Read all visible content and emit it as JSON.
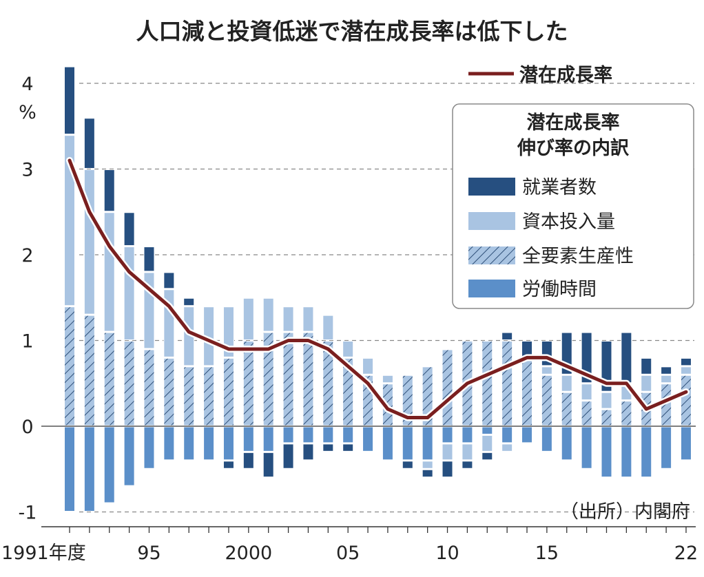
{
  "chart_data": {
    "type": "bar",
    "title": "人口減と投資低迷で潜在成長率は低下した",
    "ylabel": "%",
    "ylim": [
      -1,
      4.3
    ],
    "yticks": [
      "4",
      "3",
      "2",
      "1",
      "0",
      "-1"
    ],
    "ytick_values": [
      4,
      3,
      2,
      1,
      0,
      -1
    ],
    "x": [
      1991,
      1992,
      1993,
      1994,
      1995,
      1996,
      1997,
      1998,
      1999,
      2000,
      2001,
      2002,
      2003,
      2004,
      2005,
      2006,
      2007,
      2008,
      2009,
      2010,
      2011,
      2012,
      2013,
      2014,
      2015,
      2016,
      2017,
      2018,
      2019,
      2020,
      2021,
      2022
    ],
    "xtick_labels": [
      {
        "year": 1991,
        "label": "1991年度"
      },
      {
        "year": 1995,
        "label": "95"
      },
      {
        "year": 2000,
        "label": "2000"
      },
      {
        "year": 2005,
        "label": "05"
      },
      {
        "year": 2010,
        "label": "10"
      },
      {
        "year": 2015,
        "label": "15"
      },
      {
        "year": 2022,
        "label": "22"
      }
    ],
    "stacked": true,
    "series": [
      {
        "name": "全要素生産性",
        "kind": "hatched",
        "color": "#a9c4e2",
        "values": [
          1.4,
          1.3,
          1.1,
          1.0,
          0.9,
          0.8,
          0.7,
          0.7,
          0.8,
          1.0,
          1.1,
          1.1,
          1.1,
          1.0,
          0.8,
          0.6,
          0.5,
          0.6,
          0.7,
          0.9,
          1.0,
          1.0,
          1.0,
          0.8,
          0.6,
          0.4,
          0.3,
          0.2,
          0.3,
          0.4,
          0.5,
          0.6
        ]
      },
      {
        "name": "資本投入量",
        "kind": "light",
        "color": "#a9c4e2",
        "values": [
          2.0,
          1.7,
          1.4,
          1.1,
          0.9,
          0.8,
          0.7,
          0.7,
          0.6,
          0.5,
          0.4,
          0.3,
          0.3,
          0.3,
          0.2,
          0.2,
          0.1,
          0,
          -0.1,
          -0.2,
          -0.2,
          -0.2,
          -0.1,
          0,
          0.1,
          0.2,
          0.2,
          0.2,
          0.2,
          0.2,
          0.1,
          0.1
        ]
      },
      {
        "name": "就業者数",
        "kind": "dark",
        "color": "#264f80",
        "values": [
          0.8,
          0.6,
          0.5,
          0.4,
          0.3,
          0.2,
          0.1,
          0,
          -0.1,
          -0.2,
          -0.3,
          -0.3,
          -0.2,
          -0.1,
          -0.1,
          0,
          0,
          -0.1,
          -0.1,
          -0.2,
          -0.1,
          -0.1,
          0.1,
          0.2,
          0.3,
          0.5,
          0.6,
          0.6,
          0.6,
          0.2,
          0.1,
          0.1
        ]
      },
      {
        "name": "労働時間",
        "kind": "medium",
        "color": "#5b8fc9",
        "values": [
          -1.0,
          -1.0,
          -0.9,
          -0.7,
          -0.5,
          -0.4,
          -0.4,
          -0.4,
          -0.4,
          -0.3,
          -0.3,
          -0.2,
          -0.2,
          -0.2,
          -0.2,
          -0.3,
          -0.4,
          -0.4,
          -0.4,
          -0.2,
          -0.2,
          -0.1,
          -0.2,
          -0.2,
          -0.3,
          -0.4,
          -0.5,
          -0.6,
          -0.6,
          -0.6,
          -0.5,
          -0.4
        ]
      }
    ],
    "line": {
      "name": "潜在成長率",
      "color": "#7a1f1f",
      "values": [
        3.1,
        2.5,
        2.1,
        1.8,
        1.6,
        1.4,
        1.1,
        1.0,
        0.9,
        0.9,
        0.9,
        1.0,
        1.0,
        0.9,
        0.7,
        0.5,
        0.2,
        0.1,
        0.1,
        0.3,
        0.5,
        0.6,
        0.7,
        0.8,
        0.8,
        0.7,
        0.6,
        0.5,
        0.5,
        0.2,
        0.3,
        0.4
      ]
    },
    "legend": {
      "line_label": "潜在成長率",
      "box_title_1": "潜在成長率",
      "box_title_2": "伸び率の内訳",
      "items": [
        "就業者数",
        "資本投入量",
        "全要素生産性",
        "労働時間"
      ],
      "placement": "top-right"
    },
    "source": "（出所）内閣府",
    "grid": "dashed horizontal"
  }
}
